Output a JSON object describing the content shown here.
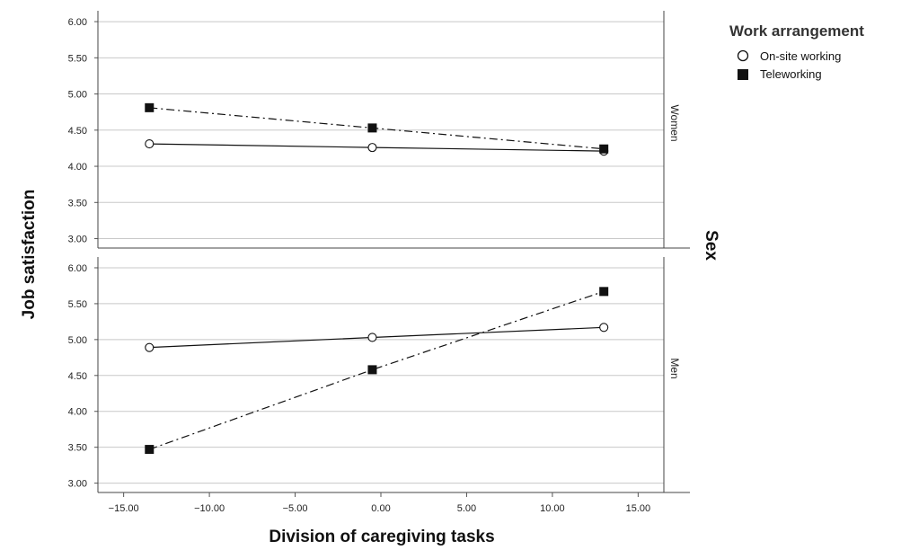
{
  "chart_data": {
    "type": "line",
    "xlabel": "Division of caregiving tasks",
    "ylabel": "Job satisfaction",
    "facet_label": "Sex",
    "x_ticks": [
      "-15.00",
      "-10.00",
      "-5.00",
      "0.00",
      "5.00",
      "10.00",
      "15.00"
    ],
    "y_ticks": [
      "3.00",
      "3.50",
      "4.00",
      "4.50",
      "5.00",
      "5.50",
      "6.00"
    ],
    "xlim": [
      -16.5,
      16.5
    ],
    "ylim": [
      2.87,
      6.15
    ],
    "grid": "horizontal",
    "legend": {
      "title": "Work arrangement",
      "placement": "right",
      "entries": [
        "On-site working",
        "Teleworking"
      ]
    },
    "panels": [
      {
        "label": "Women",
        "series": [
          {
            "name": "On-site working",
            "marker": "open-circle",
            "line": "solid",
            "x": [
              -13.5,
              -0.5,
              13.0
            ],
            "y": [
              4.31,
              4.26,
              4.21
            ]
          },
          {
            "name": "Teleworking",
            "marker": "filled-square",
            "line": "dash-dot",
            "x": [
              -13.5,
              -0.5,
              13.0
            ],
            "y": [
              4.81,
              4.53,
              4.24
            ]
          }
        ]
      },
      {
        "label": "Men",
        "series": [
          {
            "name": "On-site working",
            "marker": "open-circle",
            "line": "solid",
            "x": [
              -13.5,
              -0.5,
              13.0
            ],
            "y": [
              4.89,
              5.03,
              5.17
            ]
          },
          {
            "name": "Teleworking",
            "marker": "filled-square",
            "line": "dash-dot",
            "x": [
              -13.5,
              -0.5,
              13.0
            ],
            "y": [
              3.47,
              4.58,
              5.67
            ]
          }
        ]
      }
    ]
  }
}
